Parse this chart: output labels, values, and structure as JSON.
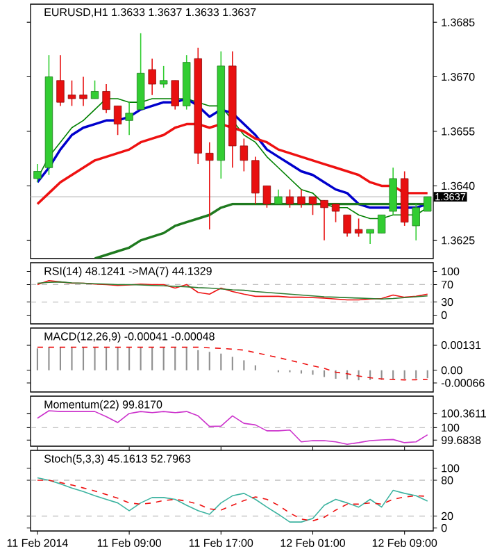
{
  "chart_data": [
    {
      "type": "candlestick",
      "title": "EURUSD,H1 1.3633 1.3637 1.3633 1.3637",
      "tick_labels": "y",
      "categories": [
        null,
        null,
        null,
        null,
        null,
        null,
        null,
        null,
        null,
        null,
        null,
        null,
        null,
        null,
        null,
        null,
        null,
        null,
        null,
        null,
        null,
        null,
        null,
        null,
        null,
        null,
        null,
        null,
        null,
        null,
        null,
        null,
        null,
        null,
        null
      ],
      "ohlc": [
        [
          1.3642,
          1.3646,
          1.3641,
          1.3644
        ],
        [
          1.3645,
          1.3676,
          1.3643,
          1.367
        ],
        [
          1.3669,
          1.3676,
          1.3662,
          1.3663
        ],
        [
          1.3665,
          1.3669,
          1.3662,
          1.3664
        ],
        [
          1.3665,
          1.367,
          1.3662,
          1.3664
        ],
        [
          1.3664,
          1.3669,
          1.3664,
          1.3666
        ],
        [
          1.3666,
          1.3668,
          1.366,
          1.3661
        ],
        [
          1.3662,
          1.3662,
          1.3654,
          1.3657
        ],
        [
          1.3658,
          1.3663,
          1.3654,
          1.366
        ],
        [
          1.3661,
          1.3682,
          1.3661,
          1.3671
        ],
        [
          1.3672,
          1.3675,
          1.3665,
          1.3668
        ],
        [
          1.3668,
          1.3673,
          1.3667,
          1.3669
        ],
        [
          1.3669,
          1.3669,
          1.3661,
          1.3662
        ],
        [
          1.3662,
          1.3676,
          1.3661,
          1.3674
        ],
        [
          1.3675,
          1.3678,
          1.3646,
          1.3649
        ],
        [
          1.3649,
          1.3652,
          1.3628,
          1.3647
        ],
        [
          1.3647,
          1.3677,
          1.3642,
          1.3673
        ],
        [
          1.3673,
          1.3677,
          1.3645,
          1.3651
        ],
        [
          1.3651,
          1.3653,
          1.3644,
          1.3647
        ],
        [
          1.3647,
          1.3648,
          1.3635,
          1.3638
        ],
        [
          1.364,
          1.364,
          1.3634,
          1.3635
        ],
        [
          1.3635,
          1.3639,
          1.3635,
          1.3637
        ],
        [
          1.3637,
          1.3639,
          1.3634,
          1.3635
        ],
        [
          1.3637,
          1.3639,
          1.3634,
          1.3635
        ],
        [
          1.3637,
          1.3637,
          1.3632,
          1.3635
        ],
        [
          1.3636,
          1.3636,
          1.3625,
          1.3634
        ],
        [
          1.3635,
          1.3635,
          1.363,
          1.3633
        ],
        [
          1.3632,
          1.3632,
          1.3626,
          1.3627
        ],
        [
          1.3628,
          1.3631,
          1.3626,
          1.3627
        ],
        [
          1.3627,
          1.3628,
          1.3624,
          1.3628
        ],
        [
          1.3627,
          1.3632,
          1.3627,
          1.3632
        ],
        [
          1.3633,
          1.3645,
          1.3632,
          1.3642
        ],
        [
          1.3642,
          1.3644,
          1.3629,
          1.363
        ],
        [
          1.3629,
          1.3635,
          1.3625,
          1.3634
        ],
        [
          1.3633,
          1.3637,
          1.3633,
          1.3637
        ]
      ],
      "colors": [
        "#32cd32",
        "#32cd32",
        "#e81010",
        "#e81010",
        "#e81010",
        "#32cd32",
        "#e81010",
        "#e81010",
        "#32cd32",
        "#32cd32",
        "#e81010",
        "#32cd32",
        "#e81010",
        "#32cd32",
        "#e81010",
        "#e81010",
        "#32cd32",
        "#e81010",
        "#e81010",
        "#e81010",
        "#e81010",
        "#32cd32",
        "#e81010",
        "#e81010",
        "#e81010",
        "#e81010",
        "#e81010",
        "#e81010",
        "#e81010",
        "#32cd32",
        "#32cd32",
        "#32cd32",
        "#e81010",
        "#32cd32",
        "#32cd32"
      ],
      "series": [
        {
          "type": "line",
          "color": "#008000",
          "values": [
            1.3642,
            1.3648,
            1.3652,
            1.3656,
            1.3658,
            1.3661,
            1.3664,
            1.3664,
            1.3663,
            1.3663,
            1.3664,
            1.3664,
            1.3664,
            1.3664,
            1.3663,
            1.3662,
            1.3662,
            null,
            1.3654,
            1.3652,
            1.3648,
            1.3645,
            1.3642,
            1.3639,
            1.3638,
            1.3635,
            1.3634,
            1.3634,
            1.3632,
            1.3631,
            1.3631,
            1.3632,
            1.3632,
            1.3632,
            1.3634
          ]
        },
        {
          "type": "line",
          "color": "#0000cc",
          "values": [
            1.3641,
            1.3645,
            1.365,
            1.3654,
            1.3656,
            1.3657,
            1.3658,
            1.3658,
            1.3659,
            1.3661,
            1.3662,
            1.3663,
            1.3663,
            1.3664,
            1.3662,
            1.3659,
            1.3661,
            1.366,
            1.3657,
            1.3654,
            1.365,
            1.3648,
            1.3646,
            1.3644,
            1.3643,
            1.3641,
            1.3639,
            1.3638,
            1.3635,
            1.3634,
            1.3634,
            1.3634,
            1.3634,
            1.3634,
            1.3635
          ]
        },
        {
          "type": "line",
          "color": "#ee1111",
          "values": [
            1.3635,
            1.3638,
            1.3641,
            1.3643,
            1.3645,
            1.3647,
            1.3648,
            1.3649,
            1.365,
            1.3652,
            1.3653,
            1.3654,
            1.3656,
            1.3657,
            1.3657,
            1.3656,
            1.3657,
            1.3656,
            1.3655,
            1.3653,
            1.3652,
            1.365,
            1.3649,
            1.3648,
            1.3647,
            1.3646,
            1.3645,
            1.3644,
            1.3643,
            1.3641,
            1.364,
            1.364,
            1.3638,
            1.3638,
            1.3638
          ]
        },
        {
          "type": "line",
          "color": "#1f7a1f",
          "values": [
            null,
            null,
            null,
            null,
            null,
            1.362,
            1.3621,
            1.3622,
            1.3623,
            1.3625,
            1.3626,
            1.3627,
            1.3629,
            1.363,
            1.3631,
            1.3632,
            1.3634,
            1.3635,
            1.3635,
            1.3635,
            1.3635,
            1.3635,
            1.3635,
            1.3635,
            1.3635,
            1.3635,
            1.3635,
            1.3635,
            1.3635,
            1.3635,
            1.3635,
            1.3635,
            1.3635,
            1.3635,
            1.3635
          ]
        }
      ],
      "ylim": [
        1.362,
        1.369
      ],
      "yticks": [
        1.3625,
        {
          "value": 1.364,
          "label": "1.3640"
        },
        1.3655,
        {
          "value": 1.367,
          "label": "1.3670"
        },
        1.3685
      ],
      "ref_lines": [
        {
          "axis": "y",
          "value": 1.3637,
          "label": "1.3637",
          "color": "#c0c0c0"
        }
      ]
    },
    {
      "type": "line",
      "title": "RSI(14) 48.1241 ->MA(7) 44.1329",
      "tick_labels": "y",
      "categories": [
        null,
        null,
        null,
        null,
        null,
        null,
        null,
        null,
        null,
        null,
        null,
        null,
        null,
        null,
        null,
        null,
        null,
        null,
        null,
        null,
        null,
        null,
        null,
        null,
        null,
        null,
        null,
        null,
        null,
        null,
        null,
        null,
        null,
        null,
        null
      ],
      "series": [
        {
          "color": "#ee1111",
          "values": [
            70,
            79,
            76,
            73,
            73,
            71,
            70,
            68,
            69,
            71,
            70,
            70,
            62,
            70,
            52,
            48,
            62,
            54,
            48,
            43,
            43,
            43,
            41,
            41,
            40,
            39,
            37,
            35,
            35,
            37,
            38,
            46,
            41,
            43,
            48
          ]
        },
        {
          "color": "#2e7d32",
          "values": [
            73,
            75,
            76,
            74,
            73,
            72,
            71,
            70,
            70,
            69,
            68,
            67,
            66,
            65,
            63,
            62,
            60,
            58,
            57,
            54,
            52,
            50,
            48,
            46,
            44,
            42,
            41,
            40,
            39,
            38,
            37,
            38,
            40,
            42,
            44
          ]
        }
      ],
      "ylim": [
        -20,
        120
      ],
      "yticks": [
        0,
        30,
        70,
        100
      ],
      "ref_lines": [
        {
          "axis": "y",
          "value": 70,
          "color": "#c0c0c0",
          "line_style": "dashed"
        },
        {
          "axis": "y",
          "value": 30,
          "color": "#c0c0c0",
          "line_style": "dashed"
        }
      ]
    },
    {
      "type": "bar",
      "title": "MACD(12,26,9) -0.00041 -0.00048",
      "tick_labels": "y",
      "categories": [
        null,
        null,
        null,
        null,
        null,
        null,
        null,
        null,
        null,
        null,
        null,
        null,
        null,
        null,
        null,
        null,
        null,
        null,
        null,
        null,
        null,
        null,
        null,
        null,
        null,
        null,
        null,
        null,
        null,
        null,
        null,
        null,
        null,
        null,
        null
      ],
      "series": [
        {
          "type": "bar",
          "color": "#909090",
          "values": [
            0.00114,
            0.00122,
            0.00122,
            0.00122,
            0.00122,
            0.00122,
            0.00122,
            0.00122,
            0.00122,
            0.00122,
            0.00122,
            0.00122,
            0.00122,
            0.00122,
            0.00105,
            0.00096,
            0.00087,
            0.0007,
            0.00052,
            0.00026,
            0,
            -0.0001,
            -0.0001,
            -0.00017,
            -0.00023,
            -0.00035,
            -0.00044,
            -0.00047,
            -0.00052,
            -0.0005,
            -0.0005,
            -0.00048,
            -0.00045,
            -0.00043,
            -0.00041
          ]
        },
        {
          "type": "line",
          "line_style": "dashed",
          "color": "#ee1111",
          "values": [
            0.0012,
            0.0012,
            0.0012,
            0.0012,
            0.0012,
            0.0012,
            0.0012,
            0.0012,
            0.0012,
            0.0012,
            0.0012,
            0.0012,
            0.0012,
            0.0012,
            0.0012,
            0.00117,
            0.00114,
            0.0011,
            0.00105,
            0.00092,
            0.00079,
            0.00066,
            0.00052,
            0.00038,
            0.00023,
            0.0001,
            -0.0001,
            -0.00018,
            -0.0003,
            -0.00039,
            -0.00045,
            -0.00048,
            -0.0005,
            -0.00049,
            -0.00048
          ]
        }
      ],
      "ylim": [
        -0.00113,
        0.0022
      ],
      "yticks": [
        -0.00066,
        {
          "value": 0,
          "label": "0.00"
        },
        0.00131
      ]
    },
    {
      "type": "line",
      "title": "Momentum(22) 99.8170",
      "tick_labels": "y",
      "categories": [
        null,
        null,
        null,
        null,
        null,
        null,
        null,
        null,
        null,
        null,
        null,
        null,
        null,
        null,
        null,
        null,
        null,
        null,
        null,
        null,
        null,
        null,
        null,
        null,
        null,
        null,
        null,
        null,
        null,
        null,
        null,
        null,
        null,
        null,
        null
      ],
      "series": [
        {
          "color": "#cc33cc",
          "values": [
            100.24,
            100.43,
            100.41,
            100.41,
            100.41,
            100.41,
            100.28,
            100.13,
            100.36,
            100.41,
            100.38,
            100.41,
            100.38,
            100.41,
            100.3,
            100.03,
            100.04,
            100.3,
            100.11,
            100.07,
            99.92,
            99.92,
            99.94,
            99.64,
            99.67,
            99.67,
            99.64,
            99.58,
            99.62,
            99.67,
            99.69,
            99.7,
            99.62,
            99.64,
            99.82
          ]
        }
      ],
      "ylim": [
        99.53,
        100.8
      ],
      "yticks": [
        99.6838,
        100,
        100.3611
      ],
      "ref_lines": [
        {
          "axis": "y",
          "value": 100,
          "color": "#c0c0c0",
          "line_style": "dashed"
        }
      ]
    },
    {
      "type": "line",
      "title": "Stoch(5,3,3) 45.1613 52.7963",
      "categories": [
        "11 Feb 2014",
        null,
        null,
        null,
        null,
        null,
        null,
        null,
        "11 Feb 09:00",
        null,
        null,
        null,
        null,
        null,
        null,
        null,
        "11 Feb 17:00",
        null,
        null,
        null,
        null,
        null,
        null,
        null,
        "12 Feb 01:00",
        null,
        null,
        null,
        null,
        null,
        null,
        null,
        "12 Feb 09:00",
        null,
        null
      ],
      "series": [
        {
          "color": "#3cb3a0",
          "values": [
            84,
            80,
            74,
            67,
            61,
            54,
            48,
            42,
            29,
            42,
            51,
            51,
            48,
            38,
            29,
            23,
            42,
            54,
            58,
            48,
            35,
            23,
            10,
            10,
            16,
            38,
            48,
            42,
            35,
            48,
            35,
            63,
            58,
            54,
            45
          ]
        },
        {
          "color": "#ee1111",
          "line_style": "dashed",
          "values": [
            80,
            80,
            76,
            72,
            67,
            62,
            56,
            50,
            42,
            40,
            42,
            46,
            48,
            45,
            40,
            32,
            30,
            38,
            46,
            52,
            48,
            38,
            25,
            15,
            12,
            18,
            30,
            40,
            40,
            42,
            40,
            48,
            52,
            54,
            53
          ]
        }
      ],
      "ylim": [
        -5,
        130
      ],
      "yticks": [
        0,
        20,
        80,
        100
      ],
      "ref_lines": [
        {
          "axis": "y",
          "value": 80,
          "color": "#c0c0c0",
          "line_style": "dashed"
        },
        {
          "axis": "y",
          "value": 20,
          "color": "#c0c0c0",
          "line_style": "dashed"
        }
      ]
    }
  ]
}
